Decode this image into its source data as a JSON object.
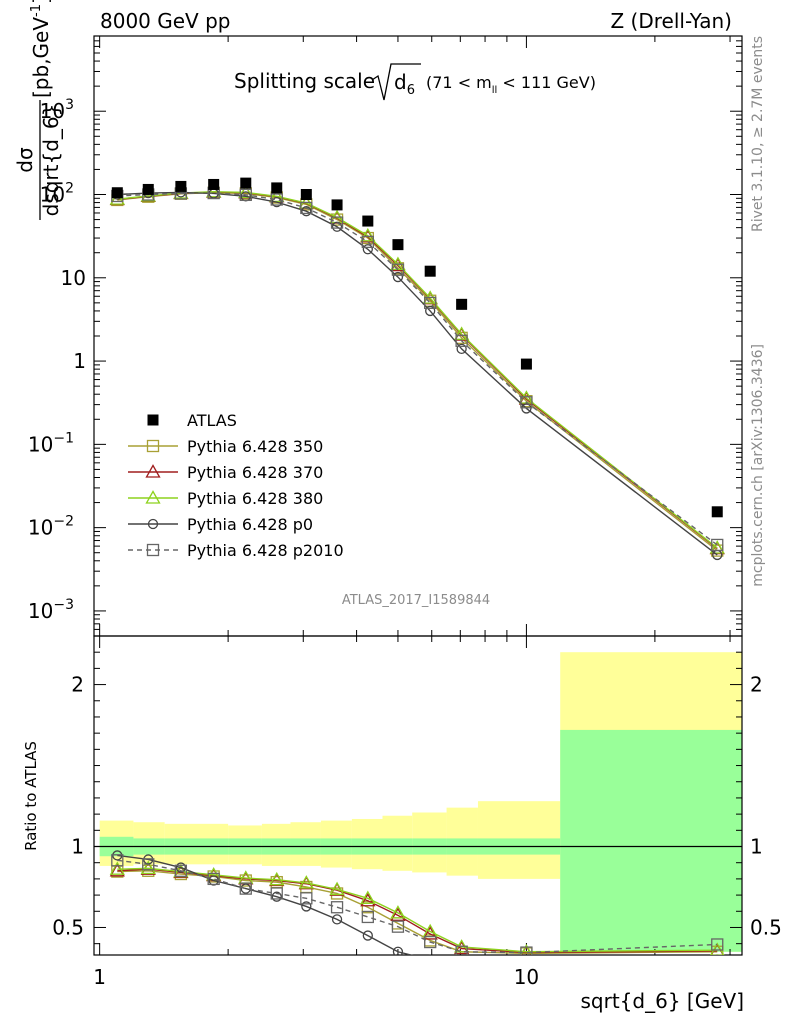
{
  "header": {
    "left": "8000 GeV pp",
    "right": "Z (Drell-Yan)"
  },
  "title": {
    "prefix": "Splitting scale",
    "var": "d",
    "var_sub": "6",
    "range": "(71 < m",
    "range_sub": "ll",
    "range_tail": " < 111 GeV)"
  },
  "side_labels": {
    "rivet": "Rivet 3.1.10, ≥ 2.7M events",
    "mcplots": "mcplots.cern.ch [arXiv:1306.3436]"
  },
  "analysis_id": "ATLAS_2017_I1589844",
  "axes": {
    "ylabel_num": "dσ",
    "ylabel_den": "dsqrt{d_6}",
    "ylabel_unit": "[pb,GeV",
    "ylabel_unit_sup": "-1",
    "ylabel_unit_close": "]",
    "ratio_ylabel": "Ratio to ATLAS",
    "xlabel": "sqrt{d_6} [GeV]"
  },
  "ticks": {
    "main_y": [
      {
        "v": 1000,
        "m": "10",
        "e": "3"
      },
      {
        "v": 100,
        "m": "10",
        "e": "2"
      },
      {
        "v": 10,
        "m": "10",
        "e": ""
      },
      {
        "v": 1,
        "m": "1",
        "e": ""
      },
      {
        "v": 0.1,
        "m": "10",
        "e": "−1"
      },
      {
        "v": 0.01,
        "m": "10",
        "e": "−2"
      },
      {
        "v": 0.001,
        "m": "10",
        "e": "−3"
      }
    ],
    "ratio_y": [
      {
        "v": 2,
        "label": "2"
      },
      {
        "v": 1,
        "label": "1"
      },
      {
        "v": 0.5,
        "label": "0.5"
      }
    ],
    "x": [
      {
        "v": 1,
        "label": "1"
      },
      {
        "v": 10,
        "label": "10"
      }
    ]
  },
  "legend": [
    {
      "label": "ATLAS",
      "color": "#000000",
      "marker": "filled-square",
      "dashed": false
    },
    {
      "label": "Pythia 6.428 350",
      "color": "#a8a035",
      "marker": "open-square",
      "dashed": false
    },
    {
      "label": "Pythia 6.428 370",
      "color": "#a01e1e",
      "marker": "open-triangle",
      "dashed": false
    },
    {
      "label": "Pythia 6.428 380",
      "color": "#8ed21e",
      "marker": "open-triangle",
      "dashed": false
    },
    {
      "label": "Pythia 6.428 p0",
      "color": "#444444",
      "marker": "open-circle",
      "dashed": false
    },
    {
      "label": "Pythia 6.428 p2010",
      "color": "#666666",
      "marker": "open-square",
      "dashed": true
    }
  ],
  "chart_data": {
    "type": "line",
    "x_scale": "log",
    "y_scale": "log",
    "xlim": [
      0.97,
      32
    ],
    "ylim": [
      0.0005,
      8000
    ],
    "ratio_ylim": [
      0.33,
      2.3
    ],
    "x": [
      1.1,
      1.3,
      1.55,
      1.85,
      2.2,
      2.6,
      3.05,
      3.6,
      4.25,
      5.0,
      5.95,
      7.05,
      10.0,
      28.0
    ],
    "bins": [
      [
        1.0,
        1.2
      ],
      [
        1.2,
        1.42
      ],
      [
        1.42,
        1.7
      ],
      [
        1.7,
        2.0
      ],
      [
        2.0,
        2.4
      ],
      [
        2.4,
        2.8
      ],
      [
        2.8,
        3.3
      ],
      [
        3.3,
        3.9
      ],
      [
        3.9,
        4.6
      ],
      [
        4.6,
        5.4
      ],
      [
        5.4,
        6.5
      ],
      [
        6.5,
        7.7
      ],
      [
        7.7,
        12.0
      ],
      [
        12.0,
        32.0
      ]
    ],
    "atlas": [
      105,
      115,
      125,
      132,
      137,
      120,
      100,
      75,
      48,
      25,
      12,
      4.8,
      0.92,
      0.0155
    ],
    "band_inner": [
      [
        0.94,
        1.06
      ],
      [
        0.95,
        1.05
      ],
      [
        0.95,
        1.05
      ],
      [
        0.95,
        1.05
      ],
      [
        0.95,
        1.05
      ],
      [
        0.95,
        1.05
      ],
      [
        0.95,
        1.05
      ],
      [
        0.95,
        1.05
      ],
      [
        0.95,
        1.05
      ],
      [
        0.95,
        1.05
      ],
      [
        0.95,
        1.05
      ],
      [
        0.95,
        1.05
      ],
      [
        0.95,
        1.05
      ],
      [
        0.35,
        1.72
      ]
    ],
    "band_outer": [
      [
        0.88,
        1.16
      ],
      [
        0.89,
        1.15
      ],
      [
        0.89,
        1.14
      ],
      [
        0.89,
        1.14
      ],
      [
        0.89,
        1.13
      ],
      [
        0.88,
        1.14
      ],
      [
        0.88,
        1.15
      ],
      [
        0.87,
        1.16
      ],
      [
        0.86,
        1.17
      ],
      [
        0.85,
        1.19
      ],
      [
        0.84,
        1.21
      ],
      [
        0.82,
        1.24
      ],
      [
        0.8,
        1.28
      ],
      [
        0.35,
        2.2
      ]
    ],
    "series": [
      {
        "name": "Pythia 6.428 350",
        "values": [
          86,
          94,
          102,
          105,
          103,
          92,
          76,
          50,
          30,
          13,
          5.3,
          1.9,
          0.33,
          0.0053
        ],
        "ratio": [
          0.845,
          0.85,
          0.83,
          0.815,
          0.79,
          0.78,
          0.75,
          0.71,
          0.625,
          0.525,
          0.42,
          0.35,
          0.34,
          0.35
        ]
      },
      {
        "name": "Pythia 6.428 370",
        "values": [
          87,
          95,
          103,
          107,
          105,
          94,
          78,
          52,
          31,
          14,
          5.6,
          2.05,
          0.35,
          0.0056
        ],
        "ratio": [
          0.85,
          0.86,
          0.84,
          0.82,
          0.8,
          0.79,
          0.77,
          0.73,
          0.665,
          0.575,
          0.46,
          0.37,
          0.345,
          0.355
        ]
      },
      {
        "name": "Pythia 6.428 380",
        "values": [
          88,
          96,
          104,
          108,
          106,
          95,
          79,
          53,
          32,
          14.5,
          5.7,
          2.1,
          0.36,
          0.0057
        ],
        "ratio": [
          0.86,
          0.865,
          0.845,
          0.825,
          0.805,
          0.795,
          0.775,
          0.735,
          0.68,
          0.59,
          0.475,
          0.38,
          0.35,
          0.36
        ]
      },
      {
        "name": "Pythia 6.428 p0",
        "values": [
          100,
          104,
          106,
          103,
          95,
          81,
          63,
          41,
          22,
          10.2,
          4.0,
          1.4,
          0.27,
          0.0047
        ],
        "ratio": [
          0.945,
          0.92,
          0.87,
          0.79,
          0.74,
          0.69,
          0.63,
          0.55,
          0.45,
          0.35,
          0.3,
          0.28,
          0.3,
          0.3
        ]
      },
      {
        "name": "Pythia 6.428 p2010",
        "values": [
          96,
          100,
          103,
          104,
          99,
          87,
          69,
          46,
          27,
          12.5,
          5.0,
          1.75,
          0.32,
          0.0062
        ],
        "ratio": [
          0.915,
          0.89,
          0.85,
          0.8,
          0.74,
          0.71,
          0.68,
          0.625,
          0.565,
          0.505,
          0.41,
          0.35,
          0.345,
          0.395
        ]
      }
    ]
  }
}
